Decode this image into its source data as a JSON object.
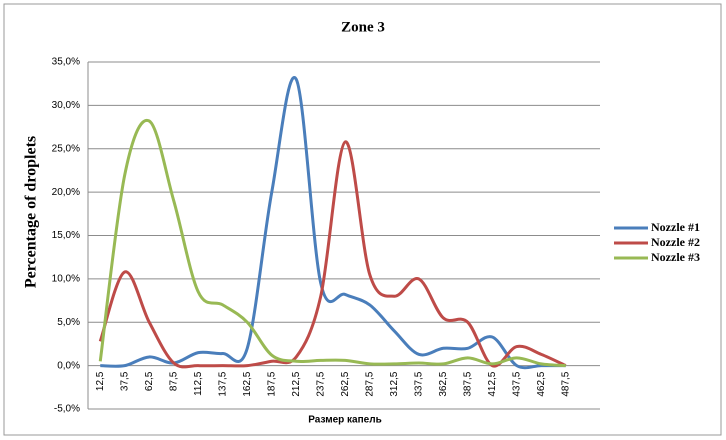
{
  "chart_data": {
    "type": "line",
    "title": "Zone 3",
    "ylabel": "Percentage of droplets",
    "xlabel": "Размер капель",
    "categories": [
      "12,5",
      "37,5",
      "62,5",
      "87,5",
      "112,5",
      "137,5",
      "162,5",
      "187,5",
      "212,5",
      "237,5",
      "262,5",
      "287,5",
      "312,5",
      "337,5",
      "362,5",
      "387,5",
      "412,5",
      "437,5",
      "462,5",
      "487,5"
    ],
    "series": [
      {
        "name": "Nozzle #1",
        "color": "#4a7ebb",
        "values": [
          0,
          0,
          1.0,
          0.3,
          1.5,
          1.4,
          2.0,
          20,
          33,
          9.5,
          8.2,
          7,
          4,
          1.3,
          2.0,
          2.0,
          3.3,
          0,
          0,
          0
        ]
      },
      {
        "name": "Nozzle #2",
        "color": "#be4b48",
        "values": [
          2.8,
          10.8,
          5.0,
          0.3,
          0,
          0,
          0,
          0.5,
          1.0,
          8.0,
          25.8,
          10.5,
          8.0,
          10.0,
          5.5,
          5.0,
          0,
          2.2,
          1.3,
          0
        ]
      },
      {
        "name": "Nozzle #3",
        "color": "#98b954",
        "values": [
          0.5,
          22,
          28.2,
          19,
          8.5,
          7,
          5,
          1.2,
          0.5,
          0.6,
          0.6,
          0.2,
          0.2,
          0.3,
          0.2,
          0.9,
          0.2,
          0.9,
          0.2,
          0
        ]
      }
    ],
    "ylim": [
      -5,
      35
    ],
    "yticks": [
      {
        "value": -5,
        "label": "-5,0%"
      },
      {
        "value": 0,
        "label": "0,0%"
      },
      {
        "value": 5,
        "label": "5,0%"
      },
      {
        "value": 10,
        "label": "10,0%"
      },
      {
        "value": 15,
        "label": "15,0%"
      },
      {
        "value": 20,
        "label": "20,0%"
      },
      {
        "value": 25,
        "label": "25,0%"
      },
      {
        "value": 30,
        "label": "30,0%"
      },
      {
        "value": 35,
        "label": "35,0%"
      }
    ],
    "grid": true,
    "legend": "right"
  }
}
